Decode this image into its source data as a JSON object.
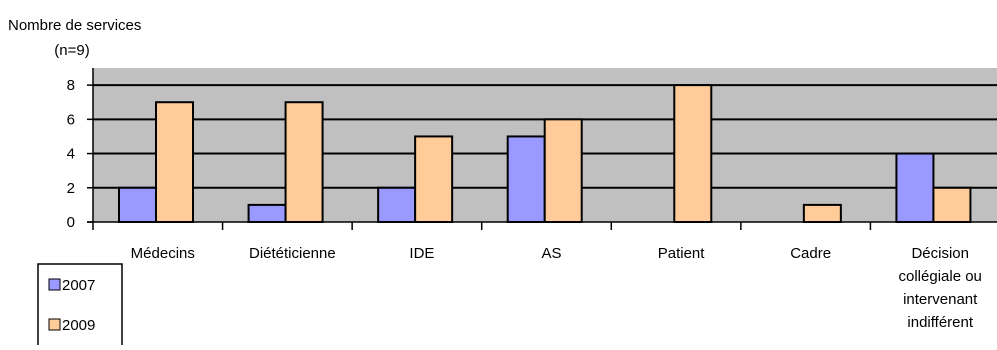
{
  "chart_data": {
    "type": "bar",
    "ylabel_line1": "Nombre de services",
    "ylabel_line2": "(n=9)",
    "categories": [
      [
        "Médecins"
      ],
      [
        "Diététicienne"
      ],
      [
        "IDE"
      ],
      [
        "AS"
      ],
      [
        "Patient"
      ],
      [
        "Cadre"
      ],
      [
        "Décision",
        "collégiale ou",
        "intervenant",
        "indifférent"
      ]
    ],
    "series": [
      {
        "name": "2007",
        "color": "#9999ff",
        "values": [
          2,
          1,
          2,
          5,
          0,
          0,
          4
        ]
      },
      {
        "name": "2009",
        "color": "#ffcc99",
        "values": [
          7,
          7,
          5,
          6,
          8,
          1,
          2
        ]
      }
    ],
    "ylim": [
      0,
      9
    ],
    "yticks": [
      "0",
      "2",
      "4",
      "6",
      "8"
    ],
    "plot_background": "#c0c0c0",
    "grid": true,
    "legend_position": "bottom-left"
  }
}
